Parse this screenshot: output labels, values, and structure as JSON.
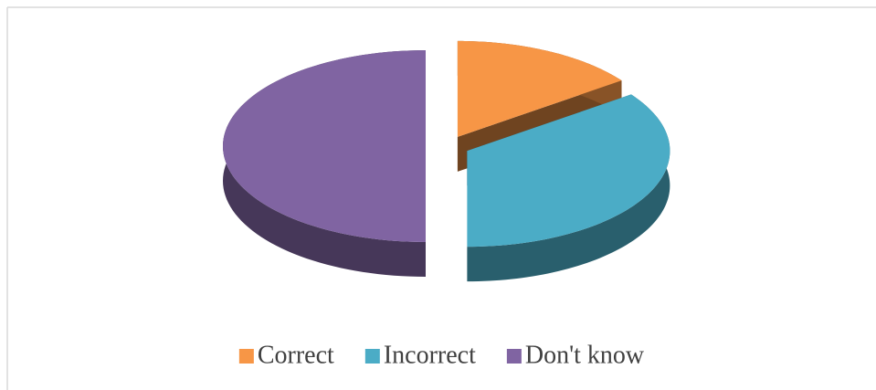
{
  "chart_data": {
    "type": "pie",
    "categories": [
      "Correct",
      "Incorrect",
      "Don't know"
    ],
    "values": [
      15,
      35,
      50
    ],
    "colors": [
      "#f79646",
      "#4bacc6",
      "#8064a2"
    ],
    "legend": "bottom",
    "style": "3d-exploded"
  }
}
